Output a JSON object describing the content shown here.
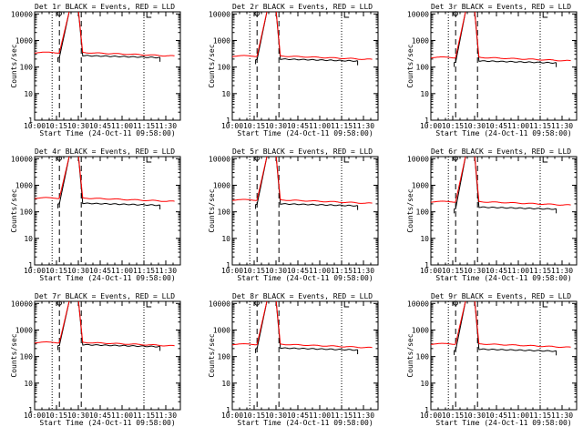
{
  "figure": {
    "start_time_label": "Start Time (24-Oct-11 09:58:00)",
    "colors": {
      "events": "#000000",
      "lld": "#ff0000",
      "background": "#ffffff"
    }
  },
  "chart_data": [
    {
      "type": "line",
      "title": "Det 1r BLACK = Events, RED = LLD",
      "detector": "1r",
      "xlabel": "Start Time (24-Oct-11 09:58:00)",
      "ylabel": "Counts/sec",
      "yscale": "log",
      "ylim": [
        1,
        12000
      ],
      "xlim": [
        "10:00",
        "11:40"
      ],
      "x_ticks": [
        "10:00",
        "10:15",
        "10:30",
        "10:45",
        "11:00",
        "11:15",
        "11:30"
      ],
      "y_ticks": [
        "1",
        "10",
        "100",
        "1000",
        "10000"
      ],
      "base_level": 350,
      "series": [
        {
          "name": "Events",
          "color": "#000000",
          "x_start": "10:16",
          "x_end": "11:26",
          "pre_level": 230,
          "post_level": 270
        },
        {
          "name": "LLD",
          "color": "#ff0000",
          "x_start": "10:00",
          "x_end": "11:36",
          "peak": "10:24",
          "peak_value": 14000
        }
      ],
      "dotted_lines": [
        "10:12",
        "11:15"
      ],
      "dashed_lines": [
        "10:17",
        "10:32"
      ]
    },
    {
      "type": "line",
      "title": "Det 2r BLACK = Events, RED = LLD",
      "detector": "2r",
      "xlabel": "Start Time (24-Oct-11 09:58:00)",
      "ylabel": "Counts/sec",
      "yscale": "log",
      "ylim": [
        1,
        12000
      ],
      "xlim": [
        "10:00",
        "11:40"
      ],
      "x_ticks": [
        "10:00",
        "10:15",
        "10:30",
        "10:45",
        "11:00",
        "11:15",
        "11:30"
      ],
      "y_ticks": [
        "1",
        "10",
        "100",
        "1000",
        "10000"
      ],
      "base_level": 260,
      "series": [
        {
          "name": "Events",
          "color": "#000000",
          "x_start": "10:16",
          "x_end": "11:26",
          "pre_level": 190,
          "post_level": 200
        },
        {
          "name": "LLD",
          "color": "#ff0000",
          "x_start": "10:00",
          "x_end": "11:36",
          "peak": "10:24",
          "peak_value": 14000
        }
      ],
      "dotted_lines": [
        "10:12",
        "11:15"
      ],
      "dashed_lines": [
        "10:17",
        "10:32"
      ]
    },
    {
      "type": "line",
      "title": "Det 3r BLACK = Events, RED = LLD",
      "detector": "3r",
      "xlabel": "Start Time (24-Oct-11 09:58:00)",
      "ylabel": "Counts/sec",
      "yscale": "log",
      "ylim": [
        1,
        12000
      ],
      "xlim": [
        "10:00",
        "11:40"
      ],
      "x_ticks": [
        "10:00",
        "10:15",
        "10:30",
        "10:45",
        "11:00",
        "11:15",
        "11:30"
      ],
      "y_ticks": [
        "1",
        "10",
        "100",
        "1000",
        "10000"
      ],
      "base_level": 230,
      "series": [
        {
          "name": "Events",
          "color": "#000000",
          "x_start": "10:16",
          "x_end": "11:26",
          "pre_level": 150,
          "post_level": 170
        },
        {
          "name": "LLD",
          "color": "#ff0000",
          "x_start": "10:00",
          "x_end": "11:36",
          "peak": "10:24",
          "peak_value": 14000
        }
      ],
      "dotted_lines": [
        "10:12",
        "11:15"
      ],
      "dashed_lines": [
        "10:17",
        "10:32"
      ]
    },
    {
      "type": "line",
      "title": "Det 4r BLACK = Events, RED = LLD",
      "detector": "4r",
      "xlabel": "Start Time (24-Oct-11 09:58:00)",
      "ylabel": "Counts/sec",
      "yscale": "log",
      "ylim": [
        1,
        12000
      ],
      "xlim": [
        "10:00",
        "11:40"
      ],
      "x_ticks": [
        "10:00",
        "10:15",
        "10:30",
        "10:45",
        "11:00",
        "11:15",
        "11:30"
      ],
      "y_ticks": [
        "1",
        "10",
        "100",
        "1000",
        "10000"
      ],
      "base_level": 330,
      "series": [
        {
          "name": "Events",
          "color": "#000000",
          "x_start": "10:16",
          "x_end": "11:26",
          "pre_level": 200,
          "post_level": 210
        },
        {
          "name": "LLD",
          "color": "#ff0000",
          "x_start": "10:00",
          "x_end": "11:36",
          "peak": "10:24",
          "peak_value": 14000
        }
      ],
      "dotted_lines": [
        "10:12",
        "11:15"
      ],
      "dashed_lines": [
        "10:17",
        "10:32"
      ]
    },
    {
      "type": "line",
      "title": "Det 5r BLACK = Events, RED = LLD",
      "detector": "5r",
      "xlabel": "Start Time (24-Oct-11 09:58:00)",
      "ylabel": "Counts/sec",
      "yscale": "log",
      "ylim": [
        1,
        12000
      ],
      "xlim": [
        "10:00",
        "11:40"
      ],
      "x_ticks": [
        "10:00",
        "10:15",
        "10:30",
        "10:45",
        "11:00",
        "11:15",
        "11:30"
      ],
      "y_ticks": [
        "1",
        "10",
        "100",
        "1000",
        "10000"
      ],
      "base_level": 280,
      "series": [
        {
          "name": "Events",
          "color": "#000000",
          "x_start": "10:16",
          "x_end": "11:26",
          "pre_level": 190,
          "post_level": 200
        },
        {
          "name": "LLD",
          "color": "#ff0000",
          "x_start": "10:00",
          "x_end": "11:36",
          "peak": "10:24",
          "peak_value": 14000
        }
      ],
      "dotted_lines": [
        "10:12",
        "11:15"
      ],
      "dashed_lines": [
        "10:17",
        "10:32"
      ]
    },
    {
      "type": "line",
      "title": "Det 6r BLACK = Events, RED = LLD",
      "detector": "6r",
      "xlabel": "Start Time (24-Oct-11 09:58:00)",
      "ylabel": "Counts/sec",
      "yscale": "log",
      "ylim": [
        1,
        12000
      ],
      "xlim": [
        "10:00",
        "11:40"
      ],
      "x_ticks": [
        "10:00",
        "10:15",
        "10:30",
        "10:45",
        "11:00",
        "11:15",
        "11:30"
      ],
      "y_ticks": [
        "1",
        "10",
        "100",
        "1000",
        "10000"
      ],
      "base_level": 240,
      "series": [
        {
          "name": "Events",
          "color": "#000000",
          "x_start": "10:16",
          "x_end": "11:26",
          "pre_level": 130,
          "post_level": 150
        },
        {
          "name": "LLD",
          "color": "#ff0000",
          "x_start": "10:00",
          "x_end": "11:36",
          "peak": "10:24",
          "peak_value": 14000
        }
      ],
      "dotted_lines": [
        "10:12",
        "11:15"
      ],
      "dashed_lines": [
        "10:17",
        "10:32"
      ]
    },
    {
      "type": "line",
      "title": "Det 7r BLACK = Events, RED = LLD",
      "detector": "7r",
      "xlabel": "Start Time (24-Oct-11 09:58:00)",
      "ylabel": "Counts/sec",
      "yscale": "log",
      "ylim": [
        1,
        12000
      ],
      "xlim": [
        "10:00",
        "11:40"
      ],
      "x_ticks": [
        "10:00",
        "10:15",
        "10:30",
        "10:45",
        "11:00",
        "11:15",
        "11:30"
      ],
      "y_ticks": [
        "1",
        "10",
        "100",
        "1000",
        "10000"
      ],
      "base_level": 340,
      "series": [
        {
          "name": "Events",
          "color": "#000000",
          "x_start": "10:16",
          "x_end": "11:26",
          "pre_level": 260,
          "post_level": 280
        },
        {
          "name": "LLD",
          "color": "#ff0000",
          "x_start": "10:00",
          "x_end": "11:36",
          "peak": "10:24",
          "peak_value": 14000
        }
      ],
      "dotted_lines": [
        "10:12",
        "11:15"
      ],
      "dashed_lines": [
        "10:17",
        "10:32"
      ]
    },
    {
      "type": "line",
      "title": "Det 8r BLACK = Events, RED = LLD",
      "detector": "8r",
      "xlabel": "Start Time (24-Oct-11 09:58:00)",
      "ylabel": "Counts/sec",
      "yscale": "log",
      "ylim": [
        1,
        12000
      ],
      "xlim": [
        "10:00",
        "11:40"
      ],
      "x_ticks": [
        "10:00",
        "10:15",
        "10:30",
        "10:45",
        "11:00",
        "11:15",
        "11:30"
      ],
      "y_ticks": [
        "1",
        "10",
        "100",
        "1000",
        "10000"
      ],
      "base_level": 290,
      "series": [
        {
          "name": "Events",
          "color": "#000000",
          "x_start": "10:16",
          "x_end": "11:26",
          "pre_level": 200,
          "post_level": 210
        },
        {
          "name": "LLD",
          "color": "#ff0000",
          "x_start": "10:00",
          "x_end": "11:36",
          "peak": "10:24",
          "peak_value": 14000
        }
      ],
      "dotted_lines": [
        "10:12",
        "11:15"
      ],
      "dashed_lines": [
        "10:17",
        "10:32"
      ]
    },
    {
      "type": "line",
      "title": "Det 9r BLACK = Events, RED = LLD",
      "detector": "9r",
      "xlabel": "Start Time (24-Oct-11 09:58:00)",
      "ylabel": "Counts/sec",
      "yscale": "log",
      "ylim": [
        1,
        12000
      ],
      "xlim": [
        "10:00",
        "11:40"
      ],
      "x_ticks": [
        "10:00",
        "10:15",
        "10:30",
        "10:45",
        "11:00",
        "11:15",
        "11:30"
      ],
      "y_ticks": [
        "1",
        "10",
        "100",
        "1000",
        "10000"
      ],
      "base_level": 300,
      "series": [
        {
          "name": "Events",
          "color": "#000000",
          "x_start": "10:16",
          "x_end": "11:26",
          "pre_level": 170,
          "post_level": 190
        },
        {
          "name": "LLD",
          "color": "#ff0000",
          "x_start": "10:00",
          "x_end": "11:36",
          "peak": "10:24",
          "peak_value": 14000
        }
      ],
      "dotted_lines": [
        "10:12",
        "11:15"
      ],
      "dashed_lines": [
        "10:17",
        "10:32"
      ]
    }
  ]
}
